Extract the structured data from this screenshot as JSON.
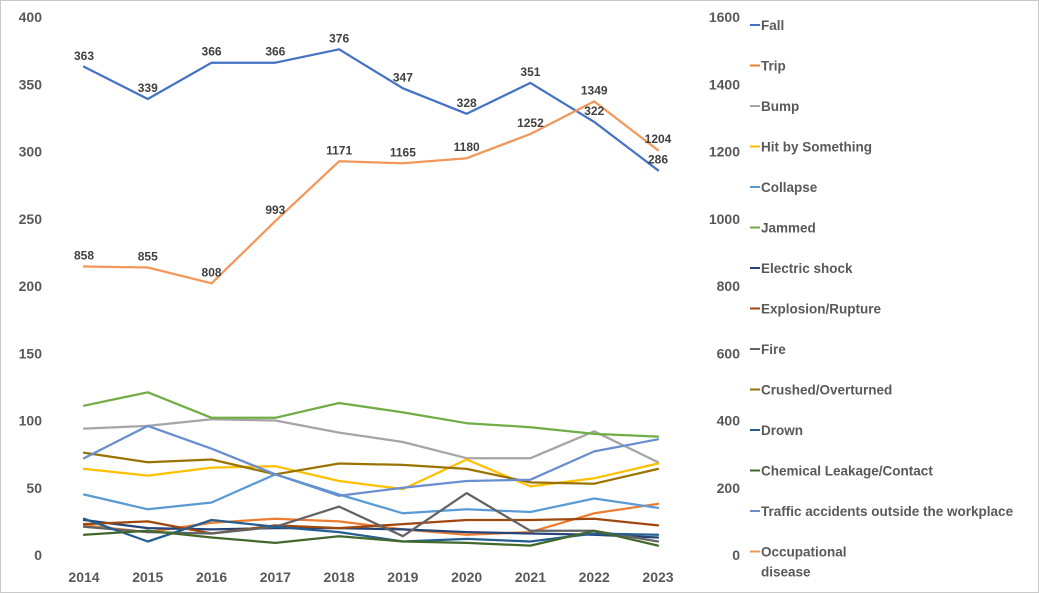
{
  "chart_data": {
    "type": "line",
    "categories": [
      "2014",
      "2015",
      "2016",
      "2017",
      "2018",
      "2019",
      "2020",
      "2021",
      "2022",
      "2023"
    ],
    "y_left": {
      "ylim": [
        0,
        400
      ],
      "ticks": [
        "0",
        "50",
        "100",
        "150",
        "200",
        "250",
        "300",
        "350",
        "400"
      ]
    },
    "y_right": {
      "ylim": [
        0,
        1600
      ],
      "ticks": [
        "0",
        "200",
        "400",
        "600",
        "800",
        "1000",
        "1200",
        "1400",
        "1600"
      ]
    },
    "grid": false,
    "legend_position": "right",
    "series": [
      {
        "name": "Fall",
        "axis": "left",
        "color": "#4472C4",
        "labels": true,
        "values": [
          363,
          339,
          366,
          366,
          376,
          347,
          328,
          351,
          322,
          286
        ]
      },
      {
        "name": "Trip",
        "axis": "left",
        "color": "#ED7D31",
        "values": [
          22,
          17,
          24,
          27,
          25,
          19,
          15,
          17,
          31,
          38
        ]
      },
      {
        "name": "Bump",
        "axis": "left",
        "color": "#A5A5A5",
        "values": [
          94,
          96,
          101,
          100,
          91,
          84,
          72,
          72,
          92,
          69
        ]
      },
      {
        "name": "Hit by Something",
        "axis": "left",
        "color": "#FFC000",
        "values": [
          64,
          59,
          65,
          66,
          55,
          49,
          71,
          51,
          57,
          68
        ]
      },
      {
        "name": "Collapse",
        "axis": "left",
        "color": "#5B9BD5",
        "values": [
          45,
          34,
          39,
          60,
          45,
          31,
          34,
          32,
          42,
          35
        ]
      },
      {
        "name": "Jammed",
        "axis": "left",
        "color": "#70AD47",
        "values": [
          111,
          121,
          102,
          102,
          113,
          106,
          98,
          95,
          90,
          88
        ]
      },
      {
        "name": "Electric shock",
        "axis": "left",
        "color": "#264478",
        "values": [
          26,
          20,
          19,
          20,
          20,
          19,
          17,
          16,
          15,
          13
        ]
      },
      {
        "name": "Explosion/Rupture",
        "axis": "left",
        "color": "#9E480E",
        "values": [
          23,
          25,
          16,
          22,
          20,
          23,
          26,
          26,
          27,
          22
        ]
      },
      {
        "name": "Fire",
        "axis": "left",
        "color": "#636363",
        "values": [
          21,
          17,
          16,
          21,
          36,
          14,
          46,
          18,
          18,
          10
        ]
      },
      {
        "name": "Crushed/Overturned",
        "axis": "left",
        "color": "#997300",
        "values": [
          76,
          69,
          71,
          60,
          68,
          67,
          64,
          54,
          53,
          64
        ]
      },
      {
        "name": "Drown",
        "axis": "left",
        "color": "#255E91",
        "values": [
          27,
          10,
          26,
          21,
          17,
          10,
          12,
          10,
          16,
          15
        ]
      },
      {
        "name": "Chemical Leakage/Contact",
        "axis": "left",
        "color": "#43682B",
        "values": [
          15,
          18,
          13,
          9,
          14,
          10,
          9,
          7,
          18,
          7
        ]
      },
      {
        "name": "Traffic accidents outside the workplace",
        "axis": "left",
        "color": "#698ED0",
        "values": [
          72,
          96,
          79,
          60,
          44,
          50,
          55,
          56,
          77,
          86
        ]
      },
      {
        "name": "Occupational disease",
        "axis": "right",
        "color": "#F1975A",
        "labels": true,
        "values": [
          858,
          855,
          808,
          993,
          1171,
          1165,
          1180,
          1252,
          1349,
          1204
        ]
      }
    ]
  },
  "legend": {
    "items": [
      {
        "label": "Fall",
        "color": "#4472C4"
      },
      {
        "label": "Trip",
        "color": "#ED7D31"
      },
      {
        "label": "Bump",
        "color": "#A5A5A5"
      },
      {
        "label": "Hit by Something",
        "color": "#FFC000"
      },
      {
        "label": "Collapse",
        "color": "#5B9BD5"
      },
      {
        "label": "Jammed",
        "color": "#70AD47"
      },
      {
        "label": "Electric shock",
        "color": "#264478"
      },
      {
        "label": "Explosion/Rupture",
        "color": "#9E480E"
      },
      {
        "label": "Fire",
        "color": "#636363"
      },
      {
        "label": "Crushed/Overturned",
        "color": "#997300"
      },
      {
        "label": "Drown",
        "color": "#255E91"
      },
      {
        "label": "Chemical Leakage/Contact",
        "color": "#43682B"
      },
      {
        "label": "Traffic accidents outside the workplace",
        "color": "#698ED0"
      },
      {
        "label": "Occupational",
        "label_line2": "disease",
        "color": "#F1975A"
      }
    ]
  }
}
